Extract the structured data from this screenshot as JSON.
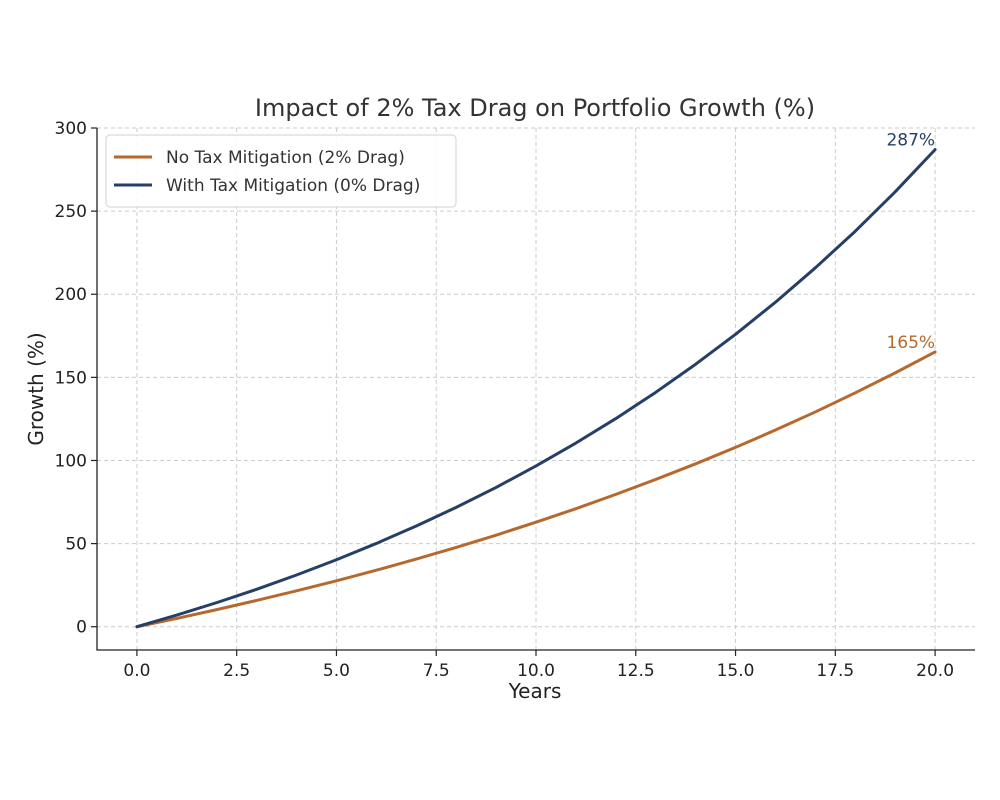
{
  "chart_data": {
    "type": "line",
    "title": "Impact of 2% Tax Drag on Portfolio Growth (%)",
    "xlabel": "Years",
    "ylabel": "Growth (%)",
    "xlim": [
      -1,
      21
    ],
    "ylim": [
      -14,
      300
    ],
    "xticks": [
      0,
      2.5,
      5,
      7.5,
      10,
      12.5,
      15,
      17.5,
      20
    ],
    "xtick_labels": [
      "0.0",
      "2.5",
      "5.0",
      "7.5",
      "10.0",
      "12.5",
      "15.0",
      "17.5",
      "20.0"
    ],
    "yticks": [
      0,
      50,
      100,
      150,
      200,
      250,
      300
    ],
    "ytick_labels": [
      "0",
      "50",
      "100",
      "150",
      "200",
      "250",
      "300"
    ],
    "grid": true,
    "legend_position": "top-left",
    "x": [
      0,
      1,
      2,
      3,
      4,
      5,
      6,
      7,
      8,
      9,
      10,
      11,
      12,
      13,
      14,
      15,
      16,
      17,
      18,
      19,
      20
    ],
    "series": [
      {
        "name": "No Tax Mitigation (2% Drag)",
        "color": "#b5692f",
        "values": [
          0,
          5.0,
          10.3,
          15.8,
          21.6,
          27.6,
          34.0,
          40.7,
          47.7,
          55.1,
          62.9,
          71.0,
          79.6,
          88.6,
          98.0,
          107.9,
          118.3,
          129.2,
          140.7,
          152.7,
          165.3
        ],
        "end_label": "165%"
      },
      {
        "name": "With Tax Mitigation (0% Drag)",
        "color": "#253f66",
        "values": [
          0,
          7.0,
          14.5,
          22.5,
          31.1,
          40.3,
          50.1,
          60.6,
          71.8,
          83.8,
          96.7,
          110.5,
          125.2,
          141.0,
          157.9,
          175.9,
          195.2,
          215.9,
          237.9,
          261.6,
          287.0
        ],
        "end_label": "287%"
      }
    ]
  }
}
